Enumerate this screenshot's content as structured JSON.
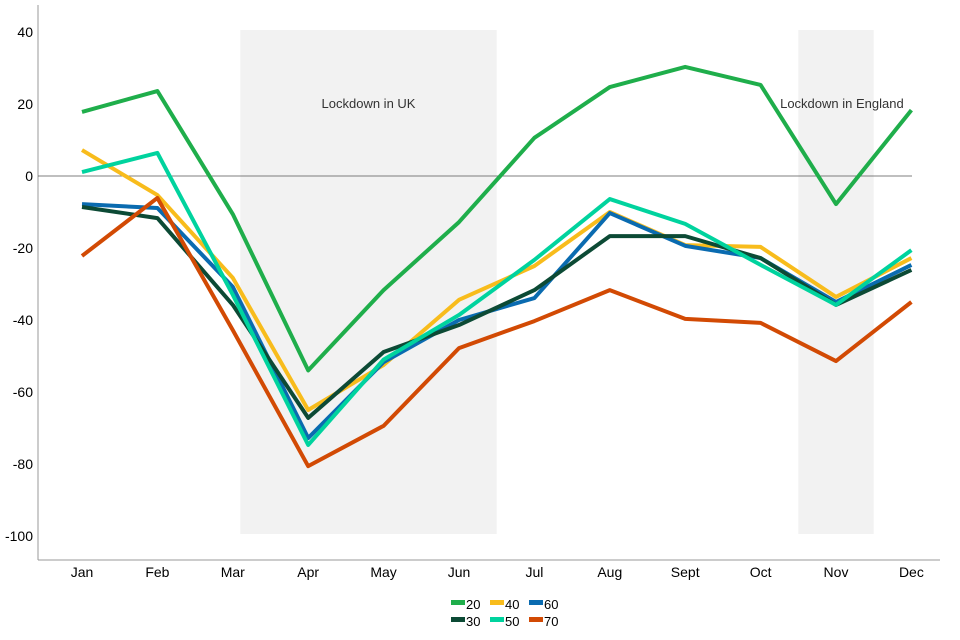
{
  "chart_data": {
    "type": "line",
    "categories": [
      "Jan",
      "Feb",
      "Mar",
      "Apr",
      "May",
      "Jun",
      "Jul",
      "Aug",
      "Sept",
      "Oct",
      "Nov",
      "Dec"
    ],
    "ylim": [
      -100,
      40
    ],
    "yticks": [
      40,
      20,
      0,
      -20,
      -40,
      -60,
      -80,
      -100
    ],
    "grid": false,
    "legend": "bottom",
    "series": [
      {
        "name": "20",
        "color": "#1fae4b",
        "values": [
          17.8,
          23.6,
          -10.6,
          -54,
          -31.7,
          -12.8,
          10.6,
          24.7,
          30.3,
          25.3,
          -7.8,
          18.3
        ]
      },
      {
        "name": "40",
        "color": "#f8bc1c",
        "values": [
          7.2,
          -5.3,
          -28.3,
          -65,
          -52.5,
          -34.4,
          -25,
          -10,
          -19.2,
          -19.7,
          -33.6,
          -22.8
        ]
      },
      {
        "name": "60",
        "color": "#0a6bb0",
        "values": [
          -7.8,
          -8.9,
          -30.8,
          -72.8,
          -51.7,
          -40,
          -33.9,
          -10.3,
          -19.4,
          -22.8,
          -35,
          -24.7
        ]
      },
      {
        "name": "30",
        "color": "#0c4a35",
        "values": [
          -8.6,
          -11.7,
          -35.8,
          -67.2,
          -48.9,
          -41.4,
          -31.7,
          -16.7,
          -16.7,
          -22.8,
          -35.8,
          -26.1
        ]
      },
      {
        "name": "50",
        "color": "#00d39e",
        "values": [
          1.1,
          6.4,
          -33,
          -74.7,
          -51,
          -38.6,
          -23.3,
          -6.4,
          -13.3,
          -24.7,
          -35.8,
          -20.6
        ]
      },
      {
        "name": "70",
        "color": "#d24a04",
        "values": [
          -22.2,
          -6.1,
          -42.8,
          -80.6,
          -69.4,
          -47.8,
          -40.3,
          -31.7,
          -39.7,
          -40.8,
          -51.4,
          -35
        ]
      }
    ],
    "annotations": [
      {
        "label": "Lockdown in UK",
        "from": "Mar",
        "to": "Jun",
        "shade": "#f2f2f2"
      },
      {
        "label": "Lockdown in England",
        "from": "Oct",
        "to": "Nov",
        "shade": "#f2f2f2"
      }
    ]
  }
}
